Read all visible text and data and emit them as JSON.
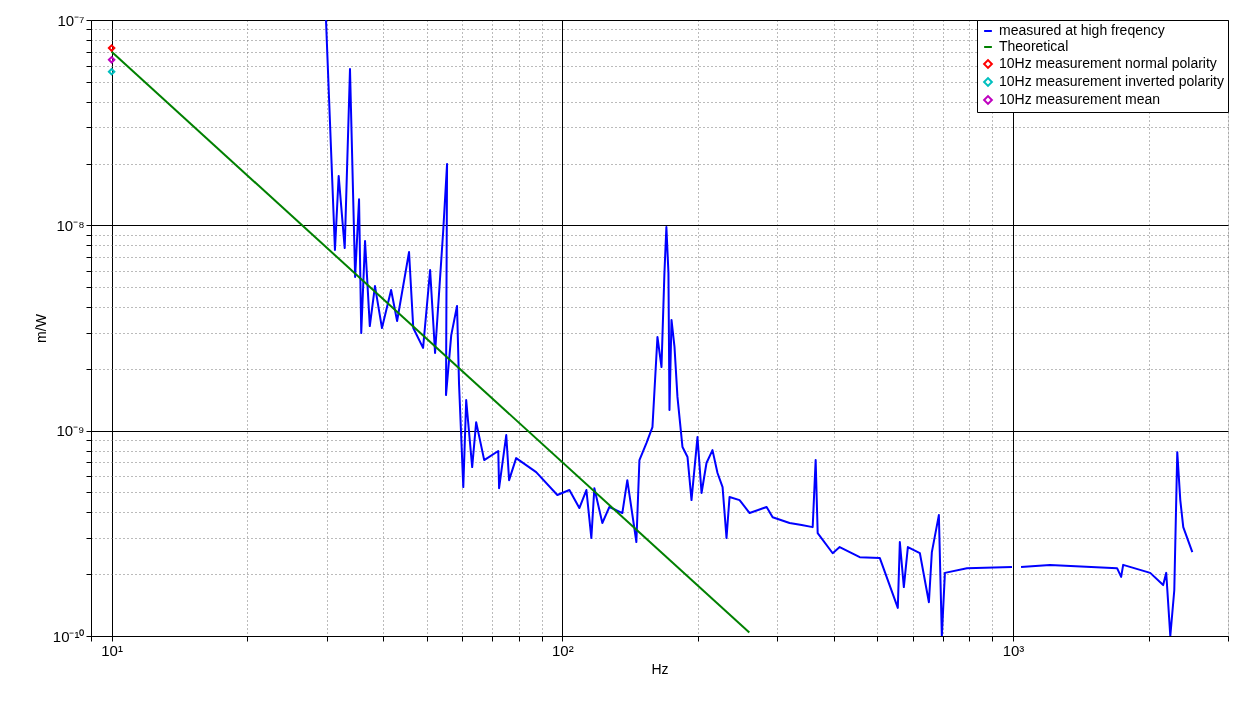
{
  "chart_data": {
    "type": "line",
    "xlabel": "Hz",
    "ylabel": "m/W",
    "log": "xy",
    "grid": true,
    "legend": "top right",
    "xlim": [
      9,
      3000
    ],
    "ylim": [
      1e-10,
      1e-07
    ],
    "xticks": [
      {
        "value": 9,
        "label": null
      },
      {
        "value": 10,
        "label": "10¹"
      },
      {
        "value": 20,
        "label": null
      },
      {
        "value": 30,
        "label": null
      },
      {
        "value": 40,
        "label": null
      },
      {
        "value": 50,
        "label": null
      },
      {
        "value": 60,
        "label": null
      },
      {
        "value": 70,
        "label": null
      },
      {
        "value": 80,
        "label": null
      },
      {
        "value": 90,
        "label": null
      },
      {
        "value": 100,
        "label": "10²"
      },
      {
        "value": 200,
        "label": null
      },
      {
        "value": 300,
        "label": null
      },
      {
        "value": 400,
        "label": null
      },
      {
        "value": 500,
        "label": null
      },
      {
        "value": 600,
        "label": null
      },
      {
        "value": 700,
        "label": null
      },
      {
        "value": 800,
        "label": null
      },
      {
        "value": 900,
        "label": null
      },
      {
        "value": 1000,
        "label": "10³"
      },
      {
        "value": 2000,
        "label": null
      },
      {
        "value": 3000,
        "label": null
      }
    ],
    "yticks": [
      {
        "value": 1e-10,
        "label": "10⁻¹⁰"
      },
      {
        "value": 2e-10,
        "label": null
      },
      {
        "value": 3e-10,
        "label": null
      },
      {
        "value": 4e-10,
        "label": null
      },
      {
        "value": 5e-10,
        "label": null
      },
      {
        "value": 6e-10,
        "label": null
      },
      {
        "value": 7e-10,
        "label": null
      },
      {
        "value": 8e-10,
        "label": null
      },
      {
        "value": 9e-10,
        "label": null
      },
      {
        "value": 1e-09,
        "label": "10⁻⁹"
      },
      {
        "value": 2e-09,
        "label": null
      },
      {
        "value": 3e-09,
        "label": null
      },
      {
        "value": 4e-09,
        "label": null
      },
      {
        "value": 5e-09,
        "label": null
      },
      {
        "value": 6e-09,
        "label": null
      },
      {
        "value": 7e-09,
        "label": null
      },
      {
        "value": 8e-09,
        "label": null
      },
      {
        "value": 9e-09,
        "label": null
      },
      {
        "value": 1e-08,
        "label": "10⁻⁸"
      },
      {
        "value": 2e-08,
        "label": null
      },
      {
        "value": 3e-08,
        "label": null
      },
      {
        "value": 4e-08,
        "label": null
      },
      {
        "value": 5e-08,
        "label": null
      },
      {
        "value": 6e-08,
        "label": null
      },
      {
        "value": 7e-08,
        "label": null
      },
      {
        "value": 8e-08,
        "label": null
      },
      {
        "value": 9e-08,
        "label": null
      },
      {
        "value": 1e-07,
        "label": "10⁻⁷"
      }
    ],
    "series": [
      {
        "name": "measured at high freqency",
        "type": "line",
        "marker": "none",
        "color": "#0000ff",
        "x": [
          29.9,
          31.3,
          31.9,
          32.9,
          33.8,
          34.7,
          35.4,
          35.8,
          36.5,
          37.4,
          38.4,
          39.8,
          41.7,
          43.0,
          45.7,
          46.7,
          49.1,
          50.9,
          52.2,
          54.4,
          55.5,
          55.2,
          56.7,
          58.4,
          59.0,
          60.3,
          61.2,
          63.1,
          64.4,
          67.1,
          72.1,
          72.4,
          75.1,
          76.2,
          79.0,
          87.5,
          97.5,
          103.7,
          109.1,
          113.1,
          116.0,
          117.8,
          122.7,
          127.2,
          135.9,
          139.4,
          146.0,
          148.3,
          153.7,
          158.5,
          162.6,
          166,
          168.5,
          170.2,
          172.0,
          172.9,
          174.7,
          177.4,
          180.1,
          184.8,
          189.6,
          193.5,
          199.5,
          203.7,
          208.9,
          215.4,
          221.0,
          226.8,
          231.4,
          235.0,
          247.4,
          260.4,
          284.0,
          292.9,
          319.4,
          339.7,
          359.4,
          364.9,
          368.7,
          398.1,
          412.6,
          457.1,
          506.3,
          555.2,
          561.0,
          572.6,
          584.5,
          621.5,
          650.8,
          660.7,
          684.8,
          695.3,
          706.3,
          790.4,
          994.9,
          1015.5,
          1042,
          1208,
          1702,
          1738,
          1756,
          2016,
          2154,
          2188,
          2234,
          2280,
          2315,
          2351,
          2387,
          2500
        ],
        "values": [
          1e-07,
          7.58e-09,
          1.74e-08,
          7.75e-09,
          5.77e-08,
          5.6e-09,
          1.34e-08,
          2.99e-09,
          8.39e-09,
          3.23e-09,
          5.06e-09,
          3.16e-09,
          4.84e-09,
          3.42e-09,
          7.41e-09,
          3.16e-09,
          2.53e-09,
          6.06e-09,
          2.39e-09,
          9.28e-09,
          1.99e-08,
          1.49e-09,
          2.92e-09,
          4.05e-09,
          1.69e-09,
          5.31e-10,
          1.41e-09,
          6.65e-10,
          1.1e-09,
          7.19e-10,
          7.96e-10,
          5.25e-10,
          9.52e-10,
          5.74e-10,
          7.35e-10,
          6.28e-10,
          4.86e-10,
          5.14e-10,
          4.2e-10,
          5.14e-10,
          3e-10,
          5.25e-10,
          3.55e-10,
          4.25e-10,
          3.97e-10,
          5.74e-10,
          2.87e-10,
          7.19e-10,
          8.7e-10,
          1.04e-09,
          2.86e-09,
          2.04e-09,
          5.86e-09,
          9.81e-09,
          5.86e-09,
          1.26e-09,
          3.46e-09,
          2.56e-09,
          1.46e-09,
          8.32e-10,
          7.44e-10,
          4.59e-10,
          9.31e-10,
          4.97e-10,
          6.96e-10,
          8.04e-10,
          6.22e-10,
          5.31e-10,
          3e-10,
          4.75e-10,
          4.59e-10,
          3.97e-10,
          4.25e-10,
          3.79e-10,
          3.55e-10,
          3.47e-10,
          3.39e-10,
          7.19e-10,
          3.17e-10,
          2.53e-10,
          2.71e-10,
          2.42e-10,
          2.4e-10,
          1.37e-10,
          2.87e-10,
          1.73e-10,
          2.71e-10,
          2.53e-10,
          1.46e-10,
          2.56e-10,
          3.88e-10,
          1e-10,
          2.03e-10,
          2.14e-10,
          2.17e-10,
          null,
          2.17e-10,
          2.22e-10,
          2.14e-10,
          1.94e-10,
          2.22e-10,
          2.03e-10,
          1.77e-10,
          2.03e-10,
          1e-10,
          1.67e-10,
          7.86e-10,
          4.59e-10,
          3.39e-10,
          2.56e-10
        ]
      },
      {
        "name": "Theoretical",
        "type": "line",
        "marker": "none",
        "color": "#008000",
        "x": [
          10,
          260
        ],
        "values": [
          7e-08,
          1.04e-10
        ]
      },
      {
        "name": "10Hz measurement normal polarity",
        "type": "scatter",
        "marker": "diamond",
        "color": "#ff0000",
        "x": [
          10
        ],
        "values": [
          7.3e-08
        ]
      },
      {
        "name": "10Hz measurement inverted polarity",
        "type": "scatter",
        "marker": "diamond",
        "color": "#00bfbf",
        "x": [
          10
        ],
        "values": [
          5.6e-08
        ]
      },
      {
        "name": "10Hz measurement mean",
        "type": "scatter",
        "marker": "diamond",
        "color": "#bf00bf",
        "x": [
          10
        ],
        "values": [
          6.4e-08
        ]
      }
    ]
  }
}
